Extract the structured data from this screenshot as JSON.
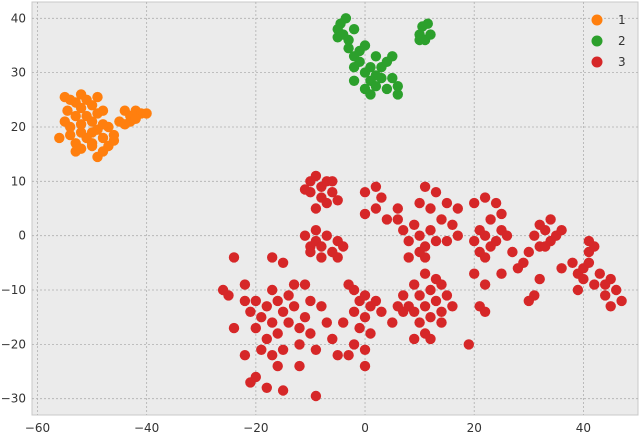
{
  "chart_data": {
    "type": "scatter",
    "title": "",
    "xlabel": "",
    "ylabel": "",
    "xlim": [
      -61,
      50
    ],
    "ylim": [
      -33,
      43
    ],
    "xticks": [
      -60,
      -40,
      -20,
      0,
      20,
      40
    ],
    "yticks": [
      -30,
      -20,
      -10,
      0,
      10,
      20,
      30,
      40
    ],
    "xtick_labels": [
      "−60",
      "−40",
      "−20",
      "0",
      "20",
      "40"
    ],
    "ytick_labels": [
      "−30",
      "−20",
      "−10",
      "0",
      "10",
      "20",
      "30",
      "40"
    ],
    "grid": true,
    "legend_position": "top-right",
    "background": "#ebebeb",
    "series": [
      {
        "name": "1",
        "color": "#ff7f0e",
        "points": [
          [
            -55,
            25.5
          ],
          [
            -54,
            25
          ],
          [
            -53,
            24.5
          ],
          [
            -52,
            26
          ],
          [
            -51,
            25
          ],
          [
            -50,
            24
          ],
          [
            -49,
            25.5
          ],
          [
            -48,
            23
          ],
          [
            -54.5,
            23
          ],
          [
            -53,
            22
          ],
          [
            -52,
            23.5
          ],
          [
            -51,
            22
          ],
          [
            -50,
            21
          ],
          [
            -49,
            22.5
          ],
          [
            -55,
            21
          ],
          [
            -56,
            18
          ],
          [
            -54,
            18.5
          ],
          [
            -53,
            17
          ],
          [
            -52,
            19
          ],
          [
            -51,
            18
          ],
          [
            -50,
            17
          ],
          [
            -49,
            19.5
          ],
          [
            -48,
            18
          ],
          [
            -47,
            16.5
          ],
          [
            -46,
            17.5
          ],
          [
            -53,
            15.5
          ],
          [
            -52,
            16
          ],
          [
            -50,
            16.5
          ],
          [
            -49,
            14.5
          ],
          [
            -48,
            15.5
          ],
          [
            -54,
            20
          ],
          [
            -52,
            20.5
          ],
          [
            -47,
            20
          ],
          [
            -46,
            18.5
          ],
          [
            -45,
            21
          ],
          [
            -44,
            23
          ],
          [
            -43,
            22
          ],
          [
            -42,
            23
          ],
          [
            -41,
            22.5
          ],
          [
            -40,
            22.5
          ],
          [
            -43,
            21
          ],
          [
            -44,
            20.5
          ],
          [
            -42,
            21.5
          ],
          [
            -50,
            19
          ],
          [
            -48,
            20.5
          ]
        ]
      },
      {
        "name": "2",
        "color": "#2ca02c",
        "points": [
          [
            -5,
            38
          ],
          [
            -4,
            37
          ],
          [
            -4.5,
            39
          ],
          [
            -3,
            36
          ],
          [
            -5,
            36.5
          ],
          [
            -3.5,
            40
          ],
          [
            -2,
            38
          ],
          [
            -3,
            34.5
          ],
          [
            -2,
            33
          ],
          [
            -1,
            34
          ],
          [
            0,
            35
          ],
          [
            -2,
            31
          ],
          [
            -1,
            32
          ],
          [
            0,
            30
          ],
          [
            1,
            31
          ],
          [
            2,
            33
          ],
          [
            3,
            31
          ],
          [
            4,
            32
          ],
          [
            2,
            29.5
          ],
          [
            3,
            29
          ],
          [
            0,
            27
          ],
          [
            1,
            28.5
          ],
          [
            2,
            27.5
          ],
          [
            4,
            27
          ],
          [
            5,
            29
          ],
          [
            6,
            27.5
          ],
          [
            6,
            26
          ],
          [
            1,
            26
          ],
          [
            -2,
            28.5
          ],
          [
            5,
            33
          ],
          [
            10,
            37
          ],
          [
            10.5,
            38.5
          ],
          [
            11,
            36
          ],
          [
            12,
            37
          ],
          [
            11.5,
            39
          ],
          [
            10,
            36
          ]
        ]
      },
      {
        "name": "3",
        "color": "#d62728",
        "points": [
          [
            -10,
            10
          ],
          [
            -9,
            11
          ],
          [
            -8,
            9
          ],
          [
            -7,
            10
          ],
          [
            -6,
            8
          ],
          [
            -8,
            7
          ],
          [
            -10,
            8
          ],
          [
            -7,
            6
          ],
          [
            -9,
            5
          ],
          [
            -5,
            6.5
          ],
          [
            -6,
            10
          ],
          [
            -11,
            8.5
          ],
          [
            0,
            8
          ],
          [
            2,
            9
          ],
          [
            3,
            7
          ],
          [
            0,
            4
          ],
          [
            2,
            5
          ],
          [
            -11,
            0
          ],
          [
            -10,
            -2
          ],
          [
            -9,
            -1
          ],
          [
            -8,
            -2
          ],
          [
            -7,
            0
          ],
          [
            -6,
            -3
          ],
          [
            -5,
            -1
          ],
          [
            -10,
            -3
          ],
          [
            -9,
            1
          ],
          [
            -4,
            -2
          ],
          [
            -8,
            -4
          ],
          [
            -5,
            -4
          ],
          [
            -17,
            -10
          ],
          [
            -18,
            -13
          ],
          [
            -16,
            -12
          ],
          [
            -19,
            -15
          ],
          [
            -20,
            -12
          ],
          [
            -17,
            -16
          ],
          [
            -16,
            -18
          ],
          [
            -15,
            -14
          ],
          [
            -14,
            -11
          ],
          [
            -14,
            -16
          ],
          [
            -18,
            -19
          ],
          [
            -20,
            -17
          ],
          [
            -21,
            -14
          ],
          [
            -22,
            -12
          ],
          [
            -19,
            -21
          ],
          [
            -17,
            -22
          ],
          [
            -15,
            -21
          ],
          [
            -13,
            -13
          ],
          [
            -12,
            -17
          ],
          [
            -12,
            -20
          ],
          [
            -11,
            -15
          ],
          [
            -10,
            -18
          ],
          [
            -9,
            -21
          ],
          [
            -8,
            -13
          ],
          [
            -7,
            -16
          ],
          [
            -6,
            -19
          ],
          [
            -5,
            -22
          ],
          [
            -13,
            -9
          ],
          [
            -11,
            -9
          ],
          [
            -10,
            -12
          ],
          [
            -20,
            -26
          ],
          [
            -21,
            -27
          ],
          [
            -18,
            -28
          ],
          [
            -15,
            -28.5
          ],
          [
            -9,
            -29.5
          ],
          [
            -12,
            -24
          ],
          [
            -16,
            -24
          ],
          [
            -22,
            -22
          ],
          [
            -24,
            -17
          ],
          [
            -25,
            -11
          ],
          [
            -26,
            -10
          ],
          [
            -22,
            -9
          ],
          [
            -15,
            -5
          ],
          [
            -17,
            -4
          ],
          [
            -24,
            -4
          ],
          [
            -2,
            -10
          ],
          [
            -1,
            -12
          ],
          [
            0,
            -11
          ],
          [
            1,
            -13
          ],
          [
            -2,
            -14
          ],
          [
            0,
            -15
          ],
          [
            2,
            -12
          ],
          [
            -1,
            -17
          ],
          [
            1,
            -18
          ],
          [
            0,
            -21
          ],
          [
            -2,
            -20
          ],
          [
            0,
            -24
          ],
          [
            3,
            -14
          ],
          [
            -3,
            -9
          ],
          [
            -4,
            -16
          ],
          [
            -3,
            -22
          ],
          [
            5,
            -16
          ],
          [
            7,
            -14
          ],
          [
            6,
            -13
          ],
          [
            7,
            -11
          ],
          [
            8,
            -13
          ],
          [
            9,
            -14
          ],
          [
            10,
            -16
          ],
          [
            11,
            -13
          ],
          [
            12,
            -15
          ],
          [
            13,
            -12
          ],
          [
            14,
            -14
          ],
          [
            11,
            -18
          ],
          [
            12,
            -19
          ],
          [
            9,
            -19
          ],
          [
            10,
            -11
          ],
          [
            12,
            -10
          ],
          [
            13,
            -8
          ],
          [
            11,
            -7
          ],
          [
            14,
            -9
          ],
          [
            15,
            -11
          ],
          [
            16,
            -13
          ],
          [
            14,
            -16
          ],
          [
            9,
            -9
          ],
          [
            11,
            -4
          ],
          [
            6,
            3
          ],
          [
            7,
            1
          ],
          [
            8,
            -1
          ],
          [
            10,
            0
          ],
          [
            11,
            -2
          ],
          [
            9,
            2
          ],
          [
            12,
            1
          ],
          [
            13,
            -1
          ],
          [
            10,
            -3
          ],
          [
            8,
            -4
          ],
          [
            12,
            5
          ],
          [
            14,
            3
          ],
          [
            15,
            -1
          ],
          [
            16,
            2
          ],
          [
            17,
            0
          ],
          [
            11,
            9
          ],
          [
            13,
            8
          ],
          [
            15,
            6
          ],
          [
            17,
            5
          ],
          [
            10,
            6
          ],
          [
            6,
            5
          ],
          [
            4,
            3
          ],
          [
            20,
            -1
          ],
          [
            21,
            -3
          ],
          [
            22,
            0
          ],
          [
            23,
            -2
          ],
          [
            21,
            1
          ],
          [
            22,
            -4
          ],
          [
            24,
            -1
          ],
          [
            23,
            3
          ],
          [
            25,
            1
          ],
          [
            26,
            0
          ],
          [
            27,
            -3
          ],
          [
            20,
            6
          ],
          [
            22,
            7
          ],
          [
            24,
            6
          ],
          [
            25,
            4
          ],
          [
            20,
            -7
          ],
          [
            22,
            -9
          ],
          [
            25,
            -7
          ],
          [
            28,
            -6
          ],
          [
            29,
            -5
          ],
          [
            21,
            -13
          ],
          [
            22,
            -14
          ],
          [
            19,
            -20
          ],
          [
            31,
            0
          ],
          [
            32,
            -2
          ],
          [
            33,
            1
          ],
          [
            34,
            -1
          ],
          [
            35,
            0
          ],
          [
            32,
            2
          ],
          [
            30,
            -3
          ],
          [
            34,
            3
          ],
          [
            36,
            1
          ],
          [
            33,
            -2
          ],
          [
            31,
            -11
          ],
          [
            30,
            -12
          ],
          [
            32,
            -8
          ],
          [
            36,
            -6
          ],
          [
            39,
            -7
          ],
          [
            40,
            -6
          ],
          [
            41,
            -5
          ],
          [
            40,
            -8
          ],
          [
            42,
            -9
          ],
          [
            43,
            -7
          ],
          [
            44,
            -9
          ],
          [
            38,
            -5
          ],
          [
            41,
            -3
          ],
          [
            45,
            -8
          ],
          [
            46,
            -10
          ],
          [
            47,
            -12
          ],
          [
            45,
            -13
          ],
          [
            44,
            -11
          ],
          [
            39,
            -10
          ],
          [
            42,
            -2
          ],
          [
            41,
            -1
          ]
        ]
      }
    ]
  }
}
